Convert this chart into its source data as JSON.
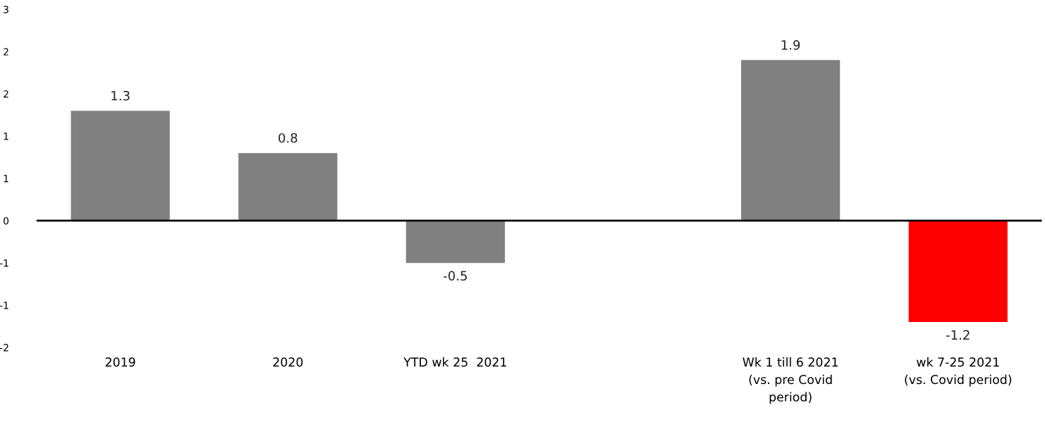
{
  "chart_data": {
    "type": "bar",
    "categories": [
      "2019",
      "2020",
      "YTD wk 25  2021",
      null,
      "Wk 1 till 6 2021\n(vs. pre Covid\nperiod)",
      "wk 7-25 2021\n(vs. Covid period)"
    ],
    "values": [
      1.3,
      0.8,
      -0.5,
      null,
      1.9,
      -1.2
    ],
    "colors": [
      "#808080",
      "#808080",
      "#808080",
      "#808080",
      "#808080",
      "#ff0000"
    ],
    "ylim": [
      -1.5,
      2.5
    ],
    "yticks": [
      {
        "value": 2.5,
        "label": "3"
      },
      {
        "value": 2,
        "label": "2"
      },
      {
        "value": 1.5,
        "label": "2"
      },
      {
        "value": 1,
        "label": "1"
      },
      {
        "value": 0.5,
        "label": "1"
      },
      {
        "value": 0,
        "label": "0"
      },
      {
        "value": -0.5,
        "label": "-1"
      },
      {
        "value": -1,
        "label": "-1"
      },
      {
        "value": -1.5,
        "label": "-2"
      }
    ],
    "ref_lines": [
      {
        "axis": "y",
        "value": 0,
        "color": "#000000"
      }
    ],
    "data_labels": true,
    "grid": false,
    "legend": false
  }
}
